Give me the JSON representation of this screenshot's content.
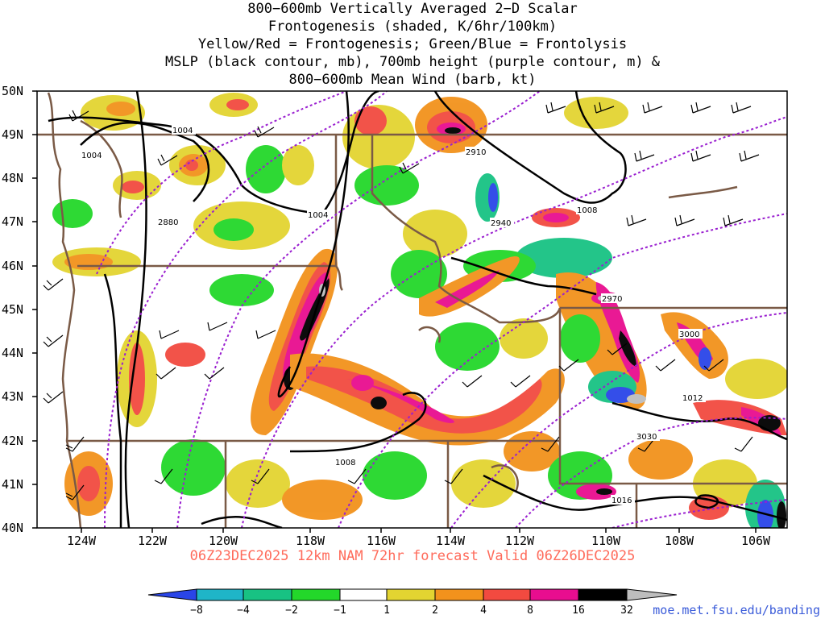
{
  "title": {
    "lines": [
      "800−600mb Vertically Averaged 2−D Scalar",
      "Frontogenesis (shaded, K/6hr/100km)",
      "Yellow/Red = Frontogenesis;  Green/Blue = Frontolysis",
      "MSLP (black contour, mb), 700mb height (purple contour, m) &",
      "800−600mb Mean Wind (barb, kt)"
    ]
  },
  "axes": {
    "lat_labels": [
      "50N",
      "49N",
      "48N",
      "47N",
      "46N",
      "45N",
      "44N",
      "43N",
      "42N",
      "41N",
      "40N"
    ],
    "lon_labels": [
      "124W",
      "122W",
      "120W",
      "118W",
      "116W",
      "114W",
      "112W",
      "110W",
      "108W",
      "106W"
    ]
  },
  "contour_labels": {
    "mslp": [
      "1004",
      "1004",
      "1004",
      "1008",
      "1008",
      "1012",
      "1016"
    ],
    "height": [
      "2880",
      "2910",
      "2940",
      "2970",
      "3000",
      "3030"
    ]
  },
  "valid_text": "06Z23DEC2025 12km NAM 72hr forecast Valid 06Z26DEC2025",
  "colorbar": {
    "labels": [
      "−8",
      "−4",
      "−2",
      "−1",
      "1",
      "2",
      "4",
      "8",
      "16",
      "32"
    ],
    "colors": [
      "#2a45e8",
      "#1fb5c8",
      "#18c283",
      "#23d72a",
      "#ffffff",
      "#e3d431",
      "#f2921c",
      "#f24a40",
      "#e80d8f",
      "#000000",
      "#bdbdbd"
    ]
  },
  "credit": "moe.met.fsu.edu/banding"
}
